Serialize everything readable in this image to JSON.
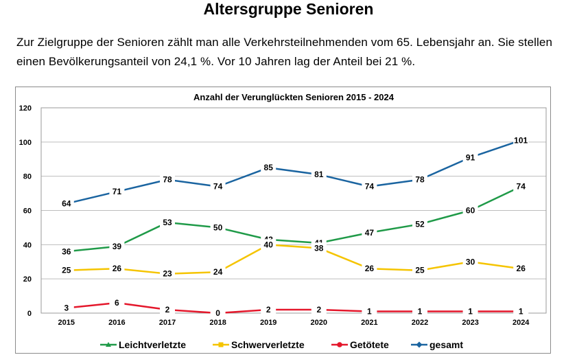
{
  "page": {
    "heading": "Altersgruppe Senioren",
    "intro": "Zur Zielgruppe der Senioren zählt man alle Verkehrsteilnehmenden vom 65. Lebensjahr an. Sie stellen einen Bevölkerungsanteil von 24,1 %. Vor 10 Jahren lag der Anteil bei 21 %."
  },
  "chart_data": {
    "type": "line",
    "title": "Anzahl der Verunglückten Senioren 2015 - 2024",
    "xlabel": "",
    "ylabel": "",
    "x": [
      "2015",
      "2016",
      "2017",
      "2018",
      "2019",
      "2020",
      "2021",
      "2022",
      "2023",
      "2024"
    ],
    "ylim": [
      0,
      120
    ],
    "yticks": [
      0,
      20,
      40,
      60,
      80,
      100,
      120
    ],
    "grid": "horizontal",
    "legend_position": "bottom",
    "series": [
      {
        "name": "Leichtverletzte",
        "color": "#1f9a48",
        "marker": "triangle",
        "values": [
          36,
          39,
          53,
          50,
          43,
          41,
          47,
          52,
          60,
          74
        ]
      },
      {
        "name": "Schwerverletzte",
        "color": "#f5c400",
        "marker": "square",
        "values": [
          25,
          26,
          23,
          24,
          40,
          38,
          26,
          25,
          30,
          26
        ]
      },
      {
        "name": "Getötete",
        "color": "#e4172b",
        "marker": "circle",
        "values": [
          3,
          6,
          2,
          0,
          2,
          2,
          1,
          1,
          1,
          1
        ]
      },
      {
        "name": "gesamt",
        "color": "#1a64a0",
        "marker": "diamond",
        "values": [
          64,
          71,
          78,
          74,
          85,
          81,
          74,
          78,
          91,
          101
        ]
      }
    ]
  }
}
